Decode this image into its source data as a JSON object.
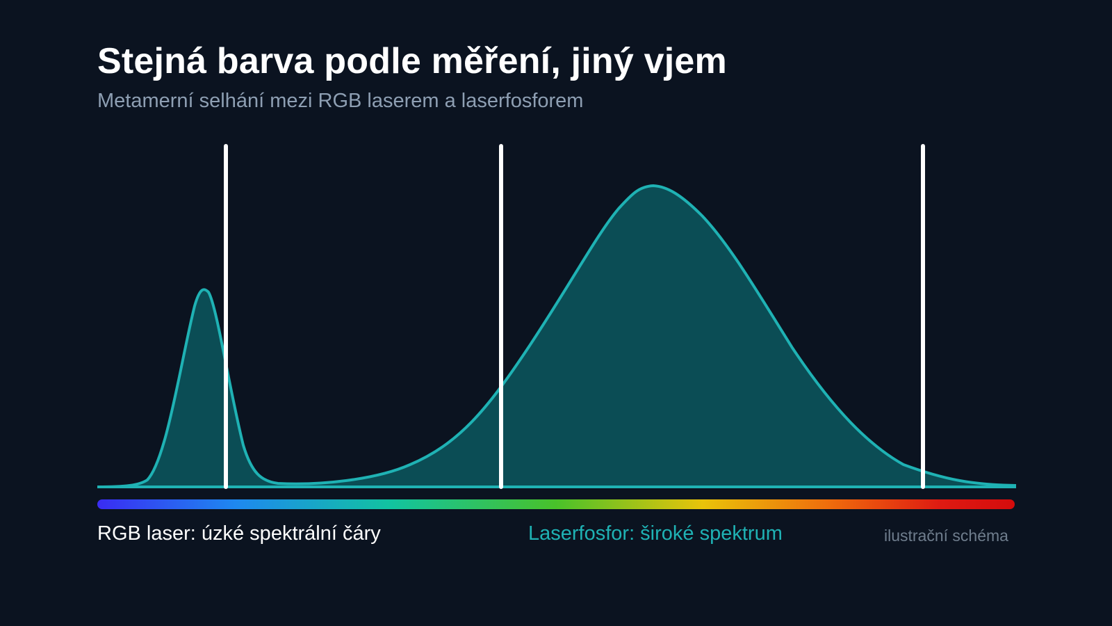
{
  "header": {
    "title": "Stejná barva podle měření, jiný vjem",
    "subtitle": "Metamerní selhání mezi RGB laserem a laserfosforem"
  },
  "labels": {
    "rgb_laser": "RGB laser: úzké spektrální čáry",
    "laser_phosphor": "Laserfosfor: široké spektrum",
    "note": "ilustrační schéma"
  },
  "colors": {
    "background": "#0b1320",
    "accent_teal": "#1fb2b4",
    "fill_teal": "#0b4d55",
    "laser_line": "#ffffff",
    "spectrum_bar": [
      "#3a2cf2",
      "#1e88f0",
      "#12c3a0",
      "#49c22a",
      "#e9c30a",
      "#ef6b0c",
      "#de1a12",
      "#d40c0c"
    ]
  },
  "diagram": {
    "laser_lines_count": 3,
    "curves": [
      "narrow-peak-blue",
      "broad-phosphor-band"
    ]
  }
}
